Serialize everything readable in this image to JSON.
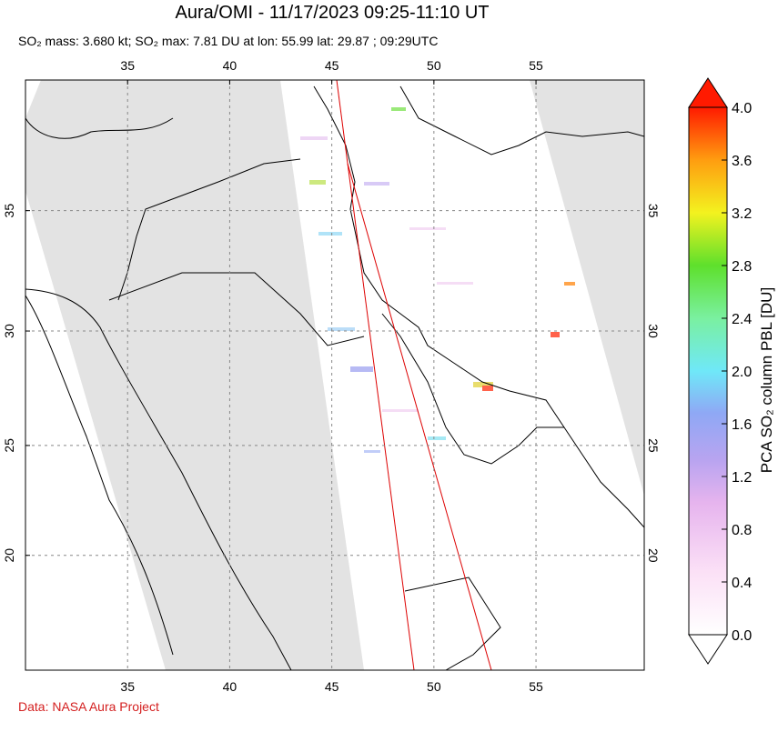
{
  "header": {
    "title": "Aura/OMI - 11/17/2023 09:25-11:10 UT",
    "subtitle": "SO₂ mass: 3.680 kt; SO₂ max: 7.81 DU at lon: 55.99 lat: 29.87 ; 09:29UTC"
  },
  "map": {
    "lon_range": [
      30,
      60.3
    ],
    "lat_range": [
      14.6,
      40.1
    ],
    "lon_ticks": [
      35,
      40,
      45,
      50,
      55
    ],
    "lat_ticks": [
      20,
      25,
      30,
      35
    ]
  },
  "colorbar": {
    "label": "PCA SO₂ column PBL [DU]",
    "range": [
      0,
      4
    ],
    "ticks": [
      {
        "value": 0,
        "label": "0.0"
      },
      {
        "value": 0.4,
        "label": "0.4"
      },
      {
        "value": 0.8,
        "label": "0.8"
      },
      {
        "value": 1.2,
        "label": "1.2"
      },
      {
        "value": 1.6,
        "label": "1.6"
      },
      {
        "value": 2.0,
        "label": "2.0"
      },
      {
        "value": 2.4,
        "label": "2.4"
      },
      {
        "value": 2.8,
        "label": "2.8"
      },
      {
        "value": 3.2,
        "label": "3.2"
      },
      {
        "value": 3.6,
        "label": "3.6"
      },
      {
        "value": 4.0,
        "label": "4.0"
      }
    ]
  },
  "footer": {
    "credit": "Data: NASA Aura Project"
  }
}
